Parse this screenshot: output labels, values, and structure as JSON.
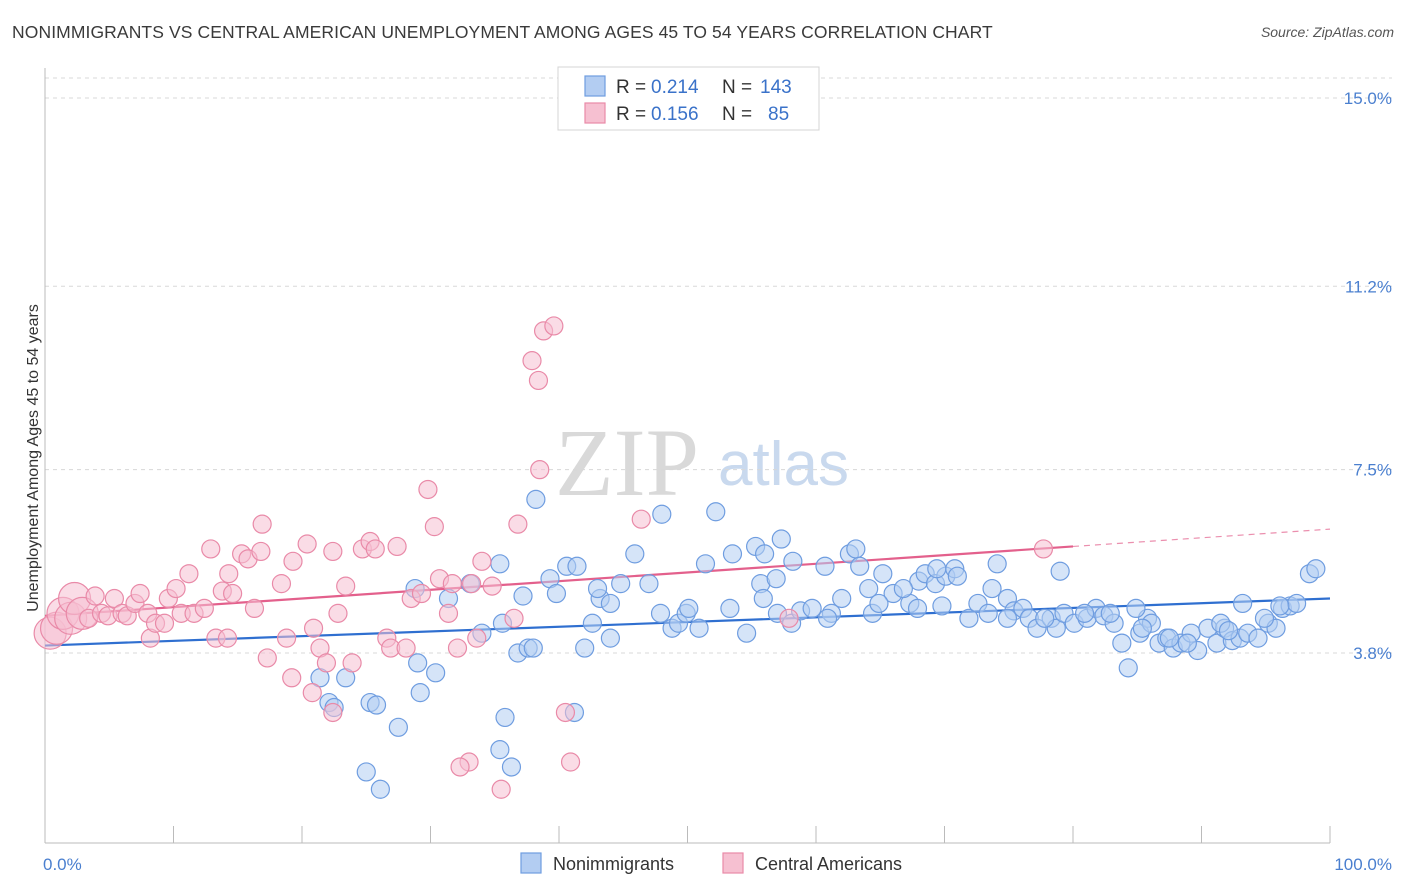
{
  "title": "NONIMMIGRANTS VS CENTRAL AMERICAN UNEMPLOYMENT AMONG AGES 45 TO 54 YEARS CORRELATION CHART",
  "source": "Source: ZipAtlas.com",
  "watermark": {
    "part1": "ZIP",
    "part2": "atlas"
  },
  "colors": {
    "blue": "#6f9de0",
    "blue_fill": "#b3cdf2",
    "blue_line": "#2f6fd0",
    "pink": "#e98aa8",
    "pink_fill": "#f6c0d1",
    "pink_line": "#e3608c",
    "tick_text": "#4a7fcf",
    "grid": "#d8d8d8"
  },
  "legend": {
    "rows": [
      {
        "r_label": "R = ",
        "r_value": "0.214",
        "n_label": "N = ",
        "n_value": "143"
      },
      {
        "r_label": "R = ",
        "r_value": "0.156",
        "n_label": "N = ",
        "n_value": "85"
      }
    ]
  },
  "bottom_legend": [
    "Nonimmigrants",
    "Central Americans"
  ],
  "chart_data": {
    "type": "scatter",
    "title": "NONIMMIGRANTS VS CENTRAL AMERICAN UNEMPLOYMENT AMONG AGES 45 TO 54 YEARS CORRELATION CHART",
    "xlabel": "",
    "ylabel": "Unemployment Among Ages 45 to 54 years",
    "xlim": [
      0,
      100
    ],
    "ylim": [
      0,
      15.5
    ],
    "x_ticks": [
      "0.0%",
      "100.0%"
    ],
    "y_ticks": [
      {
        "value": 3.8,
        "label": "3.8%"
      },
      {
        "value": 7.5,
        "label": "7.5%"
      },
      {
        "value": 11.2,
        "label": "11.2%"
      },
      {
        "value": 15.0,
        "label": "15.0%"
      }
    ],
    "grid": true,
    "legend_position": "top-center",
    "series": [
      {
        "name": "Nonimmigrants",
        "color": "blue",
        "trend": {
          "x0": 0,
          "y0": 3.95,
          "x1": 100,
          "y1": 4.9
        },
        "points": [
          [
            21.4,
            3.3
          ],
          [
            22.1,
            2.8
          ],
          [
            22.5,
            2.7
          ],
          [
            23.4,
            3.3
          ],
          [
            25.3,
            2.8
          ],
          [
            25.8,
            2.75
          ],
          [
            25.0,
            1.4
          ],
          [
            26.1,
            1.05
          ],
          [
            27.5,
            2.3
          ],
          [
            29.2,
            3.0
          ],
          [
            30.4,
            3.4
          ],
          [
            29.0,
            3.6
          ],
          [
            28.8,
            5.1
          ],
          [
            31.4,
            4.9
          ],
          [
            33.1,
            5.2
          ],
          [
            35.4,
            5.6
          ],
          [
            34.0,
            4.2
          ],
          [
            35.6,
            4.4
          ],
          [
            36.8,
            3.8
          ],
          [
            37.6,
            3.9
          ],
          [
            37.2,
            4.95
          ],
          [
            38.0,
            3.9
          ],
          [
            39.3,
            5.3
          ],
          [
            39.8,
            5.0
          ],
          [
            40.6,
            5.55
          ],
          [
            41.4,
            5.55
          ],
          [
            35.8,
            2.5
          ],
          [
            36.3,
            1.5
          ],
          [
            35.4,
            1.85
          ],
          [
            38.2,
            6.9
          ],
          [
            41.2,
            2.6
          ],
          [
            42.0,
            3.9
          ],
          [
            42.6,
            4.4
          ],
          [
            43.2,
            4.9
          ],
          [
            44.0,
            4.1
          ],
          [
            44.8,
            5.2
          ],
          [
            47.0,
            5.2
          ],
          [
            44.0,
            4.8
          ],
          [
            43.0,
            5.1
          ],
          [
            47.9,
            4.6
          ],
          [
            48.8,
            4.3
          ],
          [
            49.3,
            4.4
          ],
          [
            49.9,
            4.6
          ],
          [
            50.9,
            4.3
          ],
          [
            50.1,
            4.7
          ],
          [
            51.4,
            5.6
          ],
          [
            53.3,
            4.7
          ],
          [
            55.7,
            5.2
          ],
          [
            54.6,
            4.2
          ],
          [
            55.9,
            4.9
          ],
          [
            56.9,
            5.3
          ],
          [
            57.0,
            4.6
          ],
          [
            58.1,
            4.4
          ],
          [
            58.8,
            4.65
          ],
          [
            59.7,
            4.7
          ],
          [
            60.7,
            5.55
          ],
          [
            62.0,
            4.9
          ],
          [
            61.2,
            4.6
          ],
          [
            62.6,
            5.8
          ],
          [
            63.1,
            5.9
          ],
          [
            64.1,
            5.1
          ],
          [
            64.4,
            4.6
          ],
          [
            65.2,
            5.4
          ],
          [
            66.0,
            5.0
          ],
          [
            67.3,
            4.8
          ],
          [
            68.0,
            5.25
          ],
          [
            68.5,
            5.4
          ],
          [
            69.3,
            5.2
          ],
          [
            69.8,
            4.75
          ],
          [
            70.1,
            5.35
          ],
          [
            70.8,
            5.5
          ],
          [
            71.9,
            4.5
          ],
          [
            72.6,
            4.8
          ],
          [
            73.4,
            4.6
          ],
          [
            74.1,
            5.6
          ],
          [
            74.9,
            4.9
          ],
          [
            75.4,
            4.65
          ],
          [
            76.1,
            4.7
          ],
          [
            76.6,
            4.5
          ],
          [
            77.2,
            4.3
          ],
          [
            78.3,
            4.5
          ],
          [
            78.7,
            4.3
          ],
          [
            79.3,
            4.6
          ],
          [
            80.1,
            4.4
          ],
          [
            81.1,
            4.5
          ],
          [
            81.8,
            4.7
          ],
          [
            82.4,
            4.55
          ],
          [
            83.2,
            4.4
          ],
          [
            83.8,
            4.0
          ],
          [
            84.3,
            3.5
          ],
          [
            85.2,
            4.2
          ],
          [
            85.8,
            4.5
          ],
          [
            86.1,
            4.4
          ],
          [
            86.7,
            4.0
          ],
          [
            87.3,
            4.1
          ],
          [
            87.8,
            3.9
          ],
          [
            88.4,
            4.0
          ],
          [
            89.2,
            4.2
          ],
          [
            89.7,
            3.85
          ],
          [
            90.5,
            4.3
          ],
          [
            91.2,
            4.0
          ],
          [
            91.8,
            4.3
          ],
          [
            92.4,
            4.05
          ],
          [
            93.0,
            4.1
          ],
          [
            93.6,
            4.2
          ],
          [
            94.4,
            4.1
          ],
          [
            95.2,
            4.4
          ],
          [
            95.8,
            4.3
          ],
          [
            96.3,
            4.7
          ],
          [
            96.9,
            4.75
          ],
          [
            97.4,
            4.8
          ],
          [
            98.4,
            5.4
          ],
          [
            98.9,
            5.5
          ],
          [
            93.2,
            4.8
          ],
          [
            60.9,
            4.5
          ],
          [
            67.9,
            4.7
          ],
          [
            52.2,
            6.65
          ],
          [
            57.3,
            6.1
          ],
          [
            55.3,
            5.95
          ],
          [
            56.0,
            5.8
          ],
          [
            58.2,
            5.65
          ],
          [
            63.4,
            5.55
          ],
          [
            69.4,
            5.5
          ],
          [
            71.0,
            5.35
          ],
          [
            73.7,
            5.1
          ],
          [
            74.9,
            4.5
          ],
          [
            79.0,
            5.45
          ],
          [
            80.9,
            4.6
          ],
          [
            85.4,
            4.3
          ],
          [
            87.5,
            4.1
          ],
          [
            88.9,
            4.0
          ],
          [
            91.5,
            4.4
          ],
          [
            92.1,
            4.25
          ],
          [
            94.9,
            4.5
          ],
          [
            96.1,
            4.75
          ],
          [
            48.0,
            6.6
          ],
          [
            45.9,
            5.8
          ],
          [
            53.5,
            5.8
          ],
          [
            64.9,
            4.8
          ],
          [
            66.8,
            5.1
          ],
          [
            77.8,
            4.5
          ],
          [
            82.9,
            4.6
          ],
          [
            84.9,
            4.7
          ]
        ]
      },
      {
        "name": "Central Americans",
        "color": "pink",
        "trend": {
          "x0": 0,
          "y0": 4.55,
          "x1": 80,
          "y1": 5.95
        },
        "trend_dashed_extension": {
          "x0": 80,
          "y0": 5.95,
          "x1": 100,
          "y1": 6.3
        },
        "points": [
          [
            0.4,
            4.2
          ],
          [
            0.9,
            4.3
          ],
          [
            1.4,
            4.6
          ],
          [
            2.0,
            4.5
          ],
          [
            2.3,
            4.9
          ],
          [
            2.9,
            4.6
          ],
          [
            3.4,
            4.5
          ],
          [
            3.9,
            4.95
          ],
          [
            4.4,
            4.6
          ],
          [
            4.9,
            4.55
          ],
          [
            5.4,
            4.9
          ],
          [
            6.0,
            4.6
          ],
          [
            6.4,
            4.55
          ],
          [
            7.0,
            4.8
          ],
          [
            7.4,
            5.0
          ],
          [
            8.0,
            4.6
          ],
          [
            8.2,
            4.1
          ],
          [
            8.6,
            4.4
          ],
          [
            9.3,
            4.4
          ],
          [
            9.6,
            4.9
          ],
          [
            10.2,
            5.1
          ],
          [
            10.6,
            4.6
          ],
          [
            11.2,
            5.4
          ],
          [
            11.6,
            4.6
          ],
          [
            12.4,
            4.7
          ],
          [
            12.9,
            5.9
          ],
          [
            13.3,
            4.1
          ],
          [
            13.8,
            5.05
          ],
          [
            14.3,
            5.4
          ],
          [
            14.6,
            5.0
          ],
          [
            15.3,
            5.8
          ],
          [
            15.8,
            5.7
          ],
          [
            16.3,
            4.7
          ],
          [
            16.8,
            5.85
          ],
          [
            17.3,
            3.7
          ],
          [
            18.4,
            5.2
          ],
          [
            18.8,
            4.1
          ],
          [
            19.3,
            5.65
          ],
          [
            20.4,
            6.0
          ],
          [
            20.9,
            4.3
          ],
          [
            21.4,
            3.9
          ],
          [
            21.9,
            3.6
          ],
          [
            22.4,
            5.85
          ],
          [
            22.8,
            4.6
          ],
          [
            23.4,
            5.15
          ],
          [
            23.9,
            3.6
          ],
          [
            24.7,
            5.9
          ],
          [
            25.3,
            6.05
          ],
          [
            25.7,
            5.9
          ],
          [
            26.6,
            4.1
          ],
          [
            26.9,
            3.9
          ],
          [
            27.4,
            5.95
          ],
          [
            28.1,
            3.9
          ],
          [
            28.5,
            4.9
          ],
          [
            29.3,
            5.0
          ],
          [
            29.8,
            7.1
          ],
          [
            30.3,
            6.35
          ],
          [
            30.7,
            5.3
          ],
          [
            31.4,
            4.6
          ],
          [
            31.7,
            5.2
          ],
          [
            32.1,
            3.9
          ],
          [
            33.2,
            5.2
          ],
          [
            33.6,
            4.1
          ],
          [
            34.0,
            5.65
          ],
          [
            34.8,
            5.15
          ],
          [
            35.5,
            1.05
          ],
          [
            36.5,
            4.5
          ],
          [
            36.8,
            6.4
          ],
          [
            37.9,
            9.7
          ],
          [
            38.4,
            9.3
          ],
          [
            38.8,
            10.3
          ],
          [
            39.6,
            10.4
          ],
          [
            40.5,
            2.6
          ],
          [
            40.9,
            1.6
          ],
          [
            33.0,
            1.6
          ],
          [
            32.3,
            1.5
          ],
          [
            38.5,
            7.5
          ],
          [
            46.4,
            6.5
          ],
          [
            57.9,
            4.5
          ],
          [
            77.7,
            5.9
          ],
          [
            20.8,
            3.0
          ],
          [
            16.9,
            6.4
          ],
          [
            19.2,
            3.3
          ],
          [
            22.4,
            2.6
          ],
          [
            14.2,
            4.1
          ]
        ]
      }
    ]
  }
}
